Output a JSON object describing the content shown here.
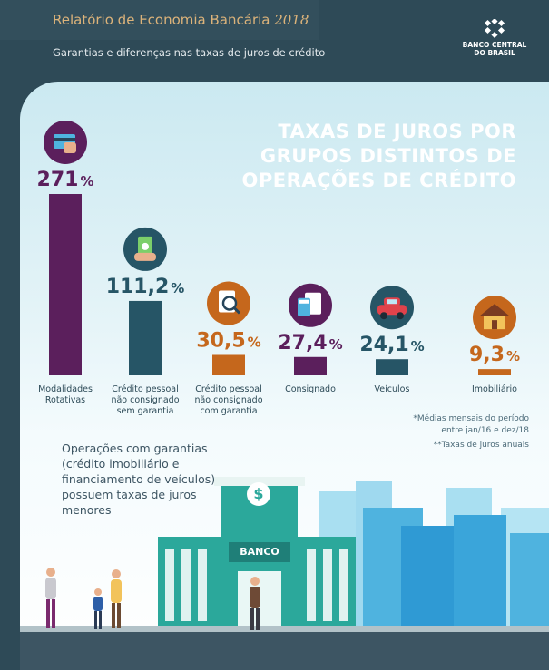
{
  "header": {
    "report_title": "Relatório de Economia Bancária",
    "report_year": "2018",
    "subtitle": "Garantias e diferenças nas taxas de juros de crédito",
    "logo_line1": "BANCO CENTRAL",
    "logo_line2": "DO BRASIL"
  },
  "title_lines": [
    "TAXAS DE JUROS POR",
    "GRUPOS DISTINTOS DE",
    "OPERAÇÕES DE CRÉDITO"
  ],
  "chart_data": {
    "type": "bar",
    "categories": [
      [
        "Modalidades",
        "Rotativas"
      ],
      [
        "Crédito pessoal",
        "não consignado",
        "sem garantia"
      ],
      [
        "Crédito pessoal",
        "não consignado",
        "com garantia"
      ],
      [
        "Consignado"
      ],
      [
        "Veículos"
      ],
      [
        "Imobiliário"
      ]
    ],
    "values": [
      271,
      111.2,
      30.5,
      27.4,
      24.1,
      9.3
    ],
    "value_labels": [
      "271",
      "111,2",
      "30,5",
      "27,4",
      "24,1",
      "9,3"
    ],
    "unit": "%",
    "icons": [
      "credit-card-icon",
      "cash-icon",
      "document-search-icon",
      "calculator-icon",
      "car-icon",
      "house-icon"
    ],
    "colors": [
      "#5b1f5c",
      "#265566",
      "#c5671c",
      "#5b1f5c",
      "#265566",
      "#c5671c"
    ],
    "ylim": [
      0,
      271
    ]
  },
  "notes": {
    "line1": "*Médias mensais do período",
    "line2": "entre jan/16 e dez/18",
    "line3": "**Taxas de juros anuais"
  },
  "summary": "Operações com garantias (crédito imobiliário e financiamento de veículos) possuem taxas de juros menores",
  "bank_sign": "BANCO",
  "bank_symbol": "$"
}
